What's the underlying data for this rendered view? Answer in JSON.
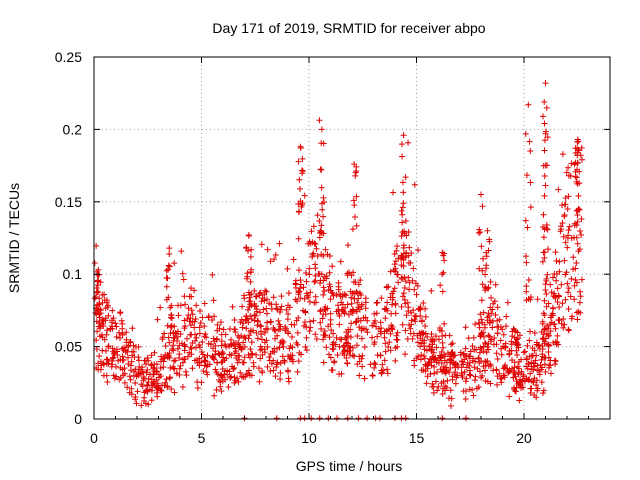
{
  "chart_data": {
    "type": "scatter",
    "title": "Day 171 of 2019, SRMTID for receiver abpo",
    "xlabel": "GPS time / hours",
    "ylabel": "SRMTID / TECUs",
    "xlim": [
      0,
      24
    ],
    "ylim": [
      0,
      0.25
    ],
    "x_ticks": [
      0,
      5,
      10,
      15,
      20
    ],
    "x_tick_labels": [
      "0",
      "5",
      "10",
      "15",
      "20"
    ],
    "y_ticks": [
      0,
      0.05,
      0.1,
      0.15,
      0.2,
      0.25
    ],
    "y_tick_labels": [
      "0",
      "0.05",
      "0.1",
      "0.15",
      "0.2",
      "0.25"
    ],
    "grid": true,
    "marker": "+",
    "color": "#e00000",
    "series": [
      {
        "name": "SRMTID",
        "trend": [
          [
            0.0,
            0.075
          ],
          [
            0.5,
            0.055
          ],
          [
            1.0,
            0.048
          ],
          [
            1.5,
            0.042
          ],
          [
            2.0,
            0.032
          ],
          [
            2.5,
            0.025
          ],
          [
            3.0,
            0.03
          ],
          [
            3.5,
            0.045
          ],
          [
            4.0,
            0.055
          ],
          [
            4.5,
            0.058
          ],
          [
            5.0,
            0.052
          ],
          [
            5.5,
            0.045
          ],
          [
            6.0,
            0.04
          ],
          [
            6.5,
            0.04
          ],
          [
            7.0,
            0.055
          ],
          [
            7.5,
            0.065
          ],
          [
            8.0,
            0.062
          ],
          [
            8.5,
            0.06
          ],
          [
            9.0,
            0.058
          ],
          [
            9.5,
            0.065
          ],
          [
            10.0,
            0.085
          ],
          [
            10.5,
            0.095
          ],
          [
            11.0,
            0.07
          ],
          [
            11.5,
            0.06
          ],
          [
            12.0,
            0.07
          ],
          [
            12.5,
            0.06
          ],
          [
            13.0,
            0.05
          ],
          [
            13.5,
            0.06
          ],
          [
            14.0,
            0.08
          ],
          [
            14.5,
            0.095
          ],
          [
            15.0,
            0.065
          ],
          [
            15.5,
            0.045
          ],
          [
            16.0,
            0.04
          ],
          [
            16.5,
            0.035
          ],
          [
            17.0,
            0.03
          ],
          [
            17.5,
            0.035
          ],
          [
            18.0,
            0.045
          ],
          [
            18.5,
            0.055
          ],
          [
            19.0,
            0.05
          ],
          [
            19.5,
            0.04
          ],
          [
            20.0,
            0.03
          ],
          [
            20.5,
            0.035
          ],
          [
            21.0,
            0.05
          ],
          [
            21.5,
            0.08
          ],
          [
            22.0,
            0.12
          ],
          [
            22.5,
            0.13
          ]
        ],
        "peaks": [
          [
            9.6,
            0.188
          ],
          [
            10.6,
            0.2
          ],
          [
            12.1,
            0.176
          ],
          [
            14.4,
            0.196
          ],
          [
            18.0,
            0.155
          ],
          [
            20.2,
            0.217
          ],
          [
            21.0,
            0.232
          ],
          [
            21.0,
            0.197
          ],
          [
            22.5,
            0.193
          ],
          [
            0.2,
            0.103
          ],
          [
            3.5,
            0.118
          ],
          [
            7.2,
            0.127
          ],
          [
            16.2,
            0.115
          ],
          [
            18.3,
            0.13
          ]
        ],
        "zero_x": [
          7.0,
          8.5,
          9.6,
          9.8,
          10.1,
          10.5,
          10.9,
          11.3,
          11.8,
          12.3,
          12.7,
          13.1,
          13.3,
          14.0,
          14.3,
          14.5,
          16.2,
          17.3
        ]
      }
    ]
  }
}
